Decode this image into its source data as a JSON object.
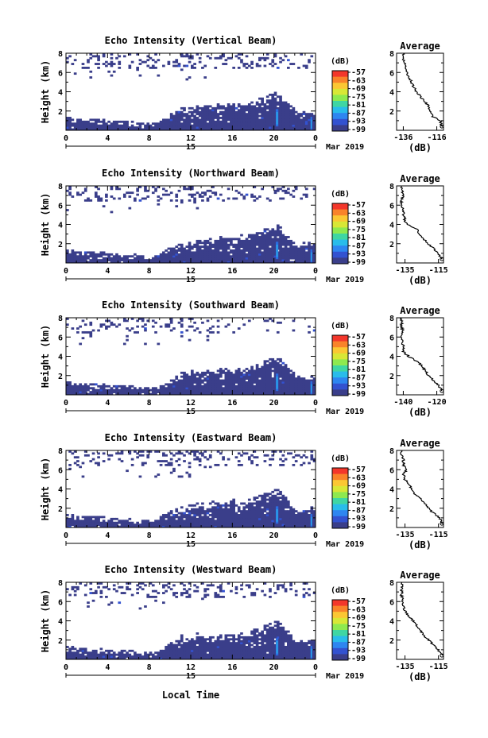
{
  "figure": {
    "bottom_xlabel": "Local Time",
    "date_label": "Mar 2019",
    "day_label": "15",
    "colorbar_unit": "(dB)",
    "colorbar_ticks": [
      "-57",
      "-63",
      "-69",
      "-75",
      "-81",
      "-87",
      "-93",
      "-99"
    ],
    "colorbar_colors": [
      "#f3372b",
      "#f9832a",
      "#fbc733",
      "#d8e736",
      "#8ee94f",
      "#3fd6a3",
      "#29bcea",
      "#2e86f0",
      "#3352d0",
      "#3a3e8a"
    ],
    "main_ylabel": "Height (km)",
    "avg_title": "Average",
    "avg_xlabel": "(dB)",
    "echo_color": "#3a3e8a",
    "core_color": "#2b6de0"
  },
  "chart_data": [
    {
      "type": "heatmap",
      "title": "Echo Intensity (Vertical Beam)",
      "x_ticks": [
        "0",
        "4",
        "8",
        "12",
        "16",
        "20",
        "0"
      ],
      "xlim": [
        0,
        24
      ],
      "y_ticks": [
        "8",
        "6",
        "4",
        "2"
      ],
      "ylim": [
        0,
        8
      ],
      "profile": {
        "title": "Average",
        "xlabel": "(dB)",
        "x_ticks": [
          "-136",
          "-116"
        ],
        "xlim": [
          -140,
          -112
        ],
        "y_ticks": [
          "8",
          "6",
          "4",
          "2"
        ],
        "ylim": [
          0,
          8
        ],
        "height_km": [
          0.4,
          1.0,
          1.5,
          2.0,
          2.5,
          3.0,
          3.5,
          4.0,
          4.5,
          5.0,
          5.5,
          6.0,
          6.5,
          7.0,
          7.5,
          8.0
        ],
        "intensity_db": [
          -113,
          -114,
          -119,
          -120,
          -121,
          -123,
          -126,
          -128,
          -130,
          -131,
          -133,
          -134,
          -135,
          -135,
          -136,
          -136
        ]
      }
    },
    {
      "type": "heatmap",
      "title": "Echo Intensity (Northward Beam)",
      "x_ticks": [
        "0",
        "4",
        "8",
        "12",
        "16",
        "20",
        "0"
      ],
      "xlim": [
        0,
        24
      ],
      "y_ticks": [
        "8",
        "6",
        "4",
        "2"
      ],
      "ylim": [
        0,
        8
      ],
      "profile": {
        "title": "Average",
        "xlabel": "(dB)",
        "x_ticks": [
          "-135",
          "-115"
        ],
        "xlim": [
          -140,
          -112
        ],
        "y_ticks": [
          "8",
          "6",
          "4",
          "2"
        ],
        "ylim": [
          0,
          8
        ],
        "height_km": [
          0.4,
          1.0,
          1.5,
          2.0,
          2.5,
          3.0,
          3.5,
          4.0,
          4.5,
          5.0,
          5.5,
          6.0,
          6.5,
          7.0,
          7.5,
          8.0
        ],
        "intensity_db": [
          -113,
          -115,
          -118,
          -121,
          -124,
          -126,
          -128,
          -134,
          -135,
          -136,
          -136,
          -137,
          -137,
          -136,
          -137,
          -137
        ]
      }
    },
    {
      "type": "heatmap",
      "title": "Echo Intensity (Southward Beam)",
      "x_ticks": [
        "0",
        "4",
        "8",
        "12",
        "16",
        "20",
        "0"
      ],
      "xlim": [
        0,
        24
      ],
      "y_ticks": [
        "8",
        "6",
        "4",
        "2"
      ],
      "ylim": [
        0,
        8
      ],
      "profile": {
        "title": "Average",
        "xlabel": "(dB)",
        "x_ticks": [
          "-140",
          "-120"
        ],
        "xlim": [
          -144,
          -116
        ],
        "y_ticks": [
          "8",
          "6",
          "4",
          "2"
        ],
        "ylim": [
          0,
          8
        ],
        "height_km": [
          0.4,
          1.0,
          1.5,
          2.0,
          2.5,
          3.0,
          3.5,
          4.0,
          4.5,
          5.0,
          5.5,
          6.0,
          6.5,
          7.0,
          7.5,
          8.0
        ],
        "intensity_db": [
          -117,
          -119,
          -122,
          -125,
          -127,
          -129,
          -132,
          -137,
          -140,
          -140,
          -141,
          -141,
          -140,
          -141,
          -141,
          -141
        ]
      }
    },
    {
      "type": "heatmap",
      "title": "Echo Intensity (Eastward Beam)",
      "x_ticks": [
        "0",
        "4",
        "8",
        "12",
        "16",
        "20",
        "0"
      ],
      "xlim": [
        0,
        24
      ],
      "y_ticks": [
        "8",
        "6",
        "4",
        "2"
      ],
      "ylim": [
        0,
        8
      ],
      "profile": {
        "title": "Average",
        "xlabel": "(dB)",
        "x_ticks": [
          "-135",
          "-115"
        ],
        "xlim": [
          -140,
          -112
        ],
        "y_ticks": [
          "8",
          "6",
          "4",
          "2"
        ],
        "ylim": [
          0,
          8
        ],
        "height_km": [
          0.4,
          1.0,
          1.5,
          2.0,
          2.5,
          3.0,
          3.5,
          4.0,
          4.5,
          5.0,
          5.5,
          6.0,
          6.5,
          7.0,
          7.5,
          8.0
        ],
        "intensity_db": [
          -113,
          -114,
          -118,
          -121,
          -123,
          -126,
          -129,
          -131,
          -133,
          -135,
          -136,
          -134,
          -136,
          -136,
          -137,
          -137
        ]
      }
    },
    {
      "type": "heatmap",
      "title": "Echo Intensity (Westward Beam)",
      "x_ticks": [
        "0",
        "4",
        "8",
        "12",
        "16",
        "20",
        "0"
      ],
      "xlim": [
        0,
        24
      ],
      "y_ticks": [
        "8",
        "6",
        "4",
        "2"
      ],
      "ylim": [
        0,
        8
      ],
      "profile": {
        "title": "Average",
        "xlabel": "(dB)",
        "x_ticks": [
          "-135",
          "-115"
        ],
        "xlim": [
          -140,
          -112
        ],
        "y_ticks": [
          "8",
          "6",
          "4",
          "2"
        ],
        "ylim": [
          0,
          8
        ],
        "height_km": [
          0.4,
          1.0,
          1.5,
          2.0,
          2.5,
          3.0,
          3.5,
          4.0,
          4.5,
          5.0,
          5.5,
          6.0,
          6.5,
          7.0,
          7.5,
          8.0
        ],
        "intensity_db": [
          -113,
          -115,
          -118,
          -121,
          -124,
          -126,
          -128,
          -130,
          -133,
          -135,
          -136,
          -136,
          -137,
          -137,
          -137,
          -137
        ]
      }
    }
  ]
}
